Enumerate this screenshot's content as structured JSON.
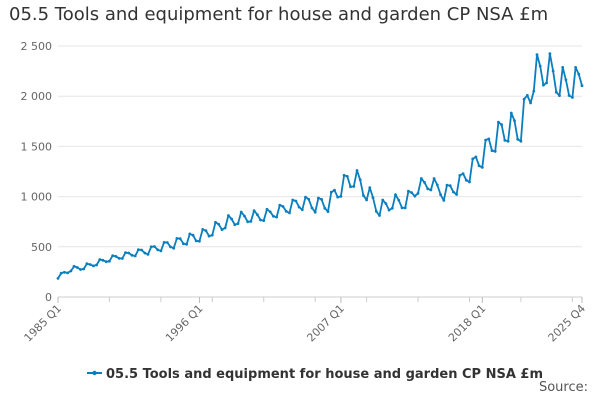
{
  "chart_data": {
    "type": "line",
    "title": "05.5 Tools and equipment for house and garden CP NSA £m",
    "xlabel": "",
    "ylabel": "",
    "ylim": [
      0,
      2500
    ],
    "y_ticks": [
      "0",
      "500",
      "1 000",
      "1 500",
      "2 000",
      "2 500"
    ],
    "x_ticks": [
      "1985 Q1",
      "1996 Q1",
      "2007 Q1",
      "2018 Q1",
      "2025 Q4"
    ],
    "grid": true,
    "legend_position": "bottom",
    "series": [
      {
        "name": "05.5 Tools and equipment for house and garden CP NSA £m",
        "color": "#0a7fbf",
        "start_year": 1985,
        "start_quarter": 1,
        "anchors": [
          {
            "t": "1985 Q1",
            "v": 195
          },
          {
            "t": "1986 Q1",
            "v": 270
          },
          {
            "t": "1987 Q1",
            "v": 290
          },
          {
            "t": "1988 Q1",
            "v": 330
          },
          {
            "t": "1989 Q1",
            "v": 370
          },
          {
            "t": "1990 Q1",
            "v": 400
          },
          {
            "t": "1991 Q1",
            "v": 430
          },
          {
            "t": "1992 Q1",
            "v": 450
          },
          {
            "t": "1993 Q1",
            "v": 490
          },
          {
            "t": "1994 Q1",
            "v": 520
          },
          {
            "t": "1995 Q1",
            "v": 560
          },
          {
            "t": "1996 Q1",
            "v": 590
          },
          {
            "t": "1997 Q1",
            "v": 650
          },
          {
            "t": "1998 Q1",
            "v": 720
          },
          {
            "t": "1999 Q1",
            "v": 760
          },
          {
            "t": "2000 Q1",
            "v": 780
          },
          {
            "t": "2001 Q1",
            "v": 790
          },
          {
            "t": "2002 Q1",
            "v": 830
          },
          {
            "t": "2003 Q1",
            "v": 880
          },
          {
            "t": "2004 Q1",
            "v": 920
          },
          {
            "t": "2005 Q1",
            "v": 900
          },
          {
            "t": "2006 Q1",
            "v": 910
          },
          {
            "t": "2007 Q1",
            "v": 1070
          },
          {
            "t": "2008 Q1",
            "v": 1170
          },
          {
            "t": "2009 Q1",
            "v": 1020
          },
          {
            "t": "2010 Q1",
            "v": 850
          },
          {
            "t": "2011 Q1",
            "v": 920
          },
          {
            "t": "2012 Q1",
            "v": 920
          },
          {
            "t": "2013 Q1",
            "v": 1070
          },
          {
            "t": "2014 Q1",
            "v": 1110
          },
          {
            "t": "2015 Q1",
            "v": 1010
          },
          {
            "t": "2016 Q1",
            "v": 1080
          },
          {
            "t": "2017 Q1",
            "v": 1220
          },
          {
            "t": "2018 Q1",
            "v": 1380
          },
          {
            "t": "2019 Q1",
            "v": 1550
          },
          {
            "t": "2020 Q1",
            "v": 1650
          },
          {
            "t": "2021 Q1",
            "v": 1640
          },
          {
            "t": "2022 Q1",
            "v": 2150
          },
          {
            "t": "2023 Q1",
            "v": 2220
          },
          {
            "t": "2024 Q1",
            "v": 2080
          },
          {
            "t": "2025 Q1",
            "v": 2060
          },
          {
            "t": "2025 Q4",
            "v": 2150
          }
        ]
      }
    ]
  },
  "legend": {
    "label": "05.5 Tools and equipment for house and garden CP NSA £m"
  },
  "footer": {
    "source_label": "Source:"
  }
}
